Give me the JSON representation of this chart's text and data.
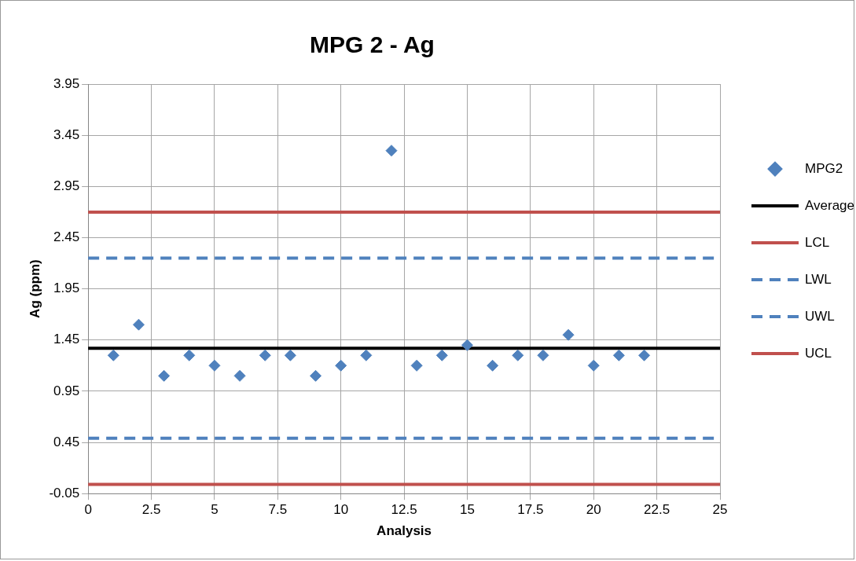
{
  "chart_data": {
    "type": "scatter",
    "title": "MPG 2 - Ag",
    "xlabel": "Analysis",
    "ylabel": "Ag (ppm)",
    "x": [
      1,
      2,
      3,
      4,
      5,
      6,
      7,
      8,
      9,
      10,
      11,
      12,
      13,
      14,
      15,
      16,
      17,
      18,
      19,
      20,
      21,
      22
    ],
    "series": [
      {
        "name": "MPG2",
        "color": "#4f81bd",
        "values": [
          1.3,
          1.6,
          1.1,
          1.3,
          1.2,
          1.1,
          1.3,
          1.3,
          1.1,
          1.2,
          1.3,
          3.3,
          1.2,
          1.3,
          1.4,
          1.2,
          1.3,
          1.3,
          1.5,
          1.2,
          1.3,
          1.3
        ]
      }
    ],
    "ref_lines": [
      {
        "axis": "y",
        "value": 1.37,
        "label": "Average",
        "color": "#000000",
        "line_style": "solid"
      },
      {
        "axis": "y",
        "value": 0.04,
        "label": "LCL",
        "color": "#c0504d",
        "line_style": "solid"
      },
      {
        "axis": "y",
        "value": 0.49,
        "label": "LWL",
        "color": "#4f81bd",
        "line_style": "dashed"
      },
      {
        "axis": "y",
        "value": 2.25,
        "label": "UWL",
        "color": "#4f81bd",
        "line_style": "dashed"
      },
      {
        "axis": "y",
        "value": 2.7,
        "label": "UCL",
        "color": "#c0504d",
        "line_style": "solid"
      }
    ],
    "marker": "diamond",
    "xlim": [
      0,
      25
    ],
    "xticks": [
      0,
      2.5,
      5,
      7.5,
      10,
      12.5,
      15,
      17.5,
      20,
      22.5,
      25
    ],
    "ylim": [
      -0.05,
      3.95
    ],
    "yticks": [
      -0.05,
      0.45,
      0.95,
      1.45,
      1.95,
      2.45,
      2.95,
      3.45,
      3.95
    ],
    "grid": true,
    "legend": "right"
  }
}
